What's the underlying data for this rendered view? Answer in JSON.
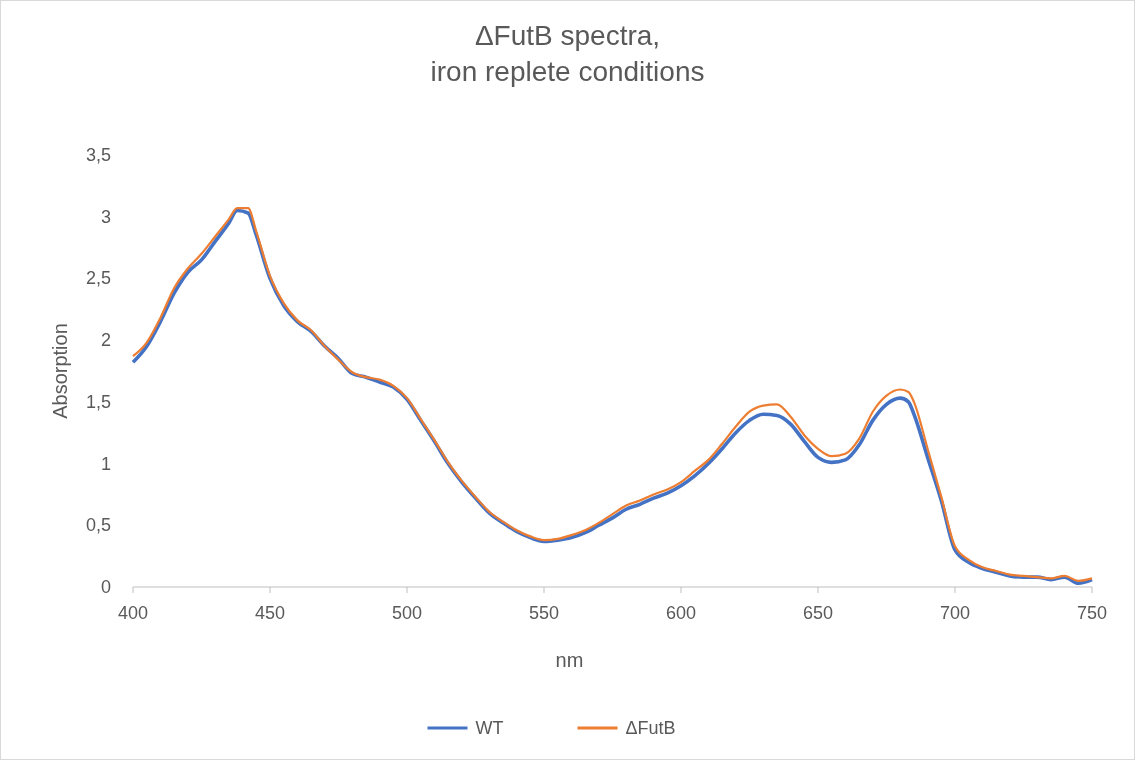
{
  "chart_data": {
    "type": "line",
    "title": "ΔFutB spectra,\niron replete conditions",
    "xlabel": "nm",
    "ylabel": "Absorption",
    "x": [
      400,
      405,
      410,
      415,
      420,
      425,
      430,
      435,
      438,
      442,
      445,
      450,
      455,
      460,
      465,
      470,
      475,
      480,
      485,
      490,
      495,
      500,
      505,
      510,
      515,
      520,
      525,
      530,
      535,
      540,
      545,
      550,
      555,
      560,
      565,
      570,
      575,
      580,
      585,
      590,
      595,
      600,
      605,
      610,
      615,
      620,
      625,
      630,
      635,
      640,
      645,
      650,
      655,
      660,
      665,
      670,
      675,
      680,
      683,
      685,
      690,
      695,
      700,
      705,
      710,
      715,
      720,
      725,
      730,
      735,
      740,
      745,
      750
    ],
    "series": [
      {
        "name": "WT",
        "color": "#4472c4",
        "values": [
          1.82,
          1.95,
          2.15,
          2.38,
          2.55,
          2.65,
          2.8,
          2.95,
          3.05,
          3.03,
          2.85,
          2.5,
          2.28,
          2.15,
          2.07,
          1.95,
          1.85,
          1.73,
          1.7,
          1.66,
          1.62,
          1.52,
          1.35,
          1.18,
          1.0,
          0.85,
          0.72,
          0.6,
          0.52,
          0.45,
          0.4,
          0.37,
          0.38,
          0.4,
          0.44,
          0.5,
          0.56,
          0.63,
          0.67,
          0.72,
          0.76,
          0.82,
          0.9,
          1.0,
          1.12,
          1.25,
          1.35,
          1.4,
          1.39,
          1.32,
          1.18,
          1.05,
          1.01,
          1.03,
          1.15,
          1.35,
          1.48,
          1.53,
          1.5,
          1.4,
          1.05,
          0.7,
          0.3,
          0.2,
          0.15,
          0.12,
          0.09,
          0.08,
          0.08,
          0.06,
          0.08,
          0.03,
          0.06
        ]
      },
      {
        "name": "ΔFutB",
        "color": "#ed7d31",
        "values": [
          1.87,
          1.98,
          2.18,
          2.42,
          2.58,
          2.7,
          2.84,
          2.98,
          3.07,
          3.07,
          2.88,
          2.52,
          2.3,
          2.16,
          2.08,
          1.95,
          1.84,
          1.74,
          1.7,
          1.68,
          1.63,
          1.53,
          1.36,
          1.19,
          1.01,
          0.86,
          0.73,
          0.61,
          0.53,
          0.46,
          0.41,
          0.38,
          0.39,
          0.42,
          0.46,
          0.52,
          0.59,
          0.66,
          0.7,
          0.75,
          0.79,
          0.85,
          0.94,
          1.03,
          1.16,
          1.3,
          1.42,
          1.47,
          1.48,
          1.38,
          1.23,
          1.12,
          1.06,
          1.08,
          1.2,
          1.42,
          1.55,
          1.6,
          1.58,
          1.5,
          1.12,
          0.73,
          0.33,
          0.22,
          0.16,
          0.13,
          0.1,
          0.09,
          0.08,
          0.07,
          0.09,
          0.05,
          0.07
        ]
      }
    ],
    "xlim": [
      400,
      750
    ],
    "xticks": [
      400,
      450,
      500,
      550,
      600,
      650,
      700,
      750
    ],
    "ylim": [
      0,
      3.5
    ],
    "yticks": [
      0,
      {
        "value": 0.5,
        "label": "0,5"
      },
      1,
      {
        "value": 1.5,
        "label": "1,5"
      },
      2,
      {
        "value": 2.5,
        "label": "2,5"
      },
      3,
      {
        "value": 3.5,
        "label": "3,5"
      }
    ],
    "legend": "bottom"
  }
}
